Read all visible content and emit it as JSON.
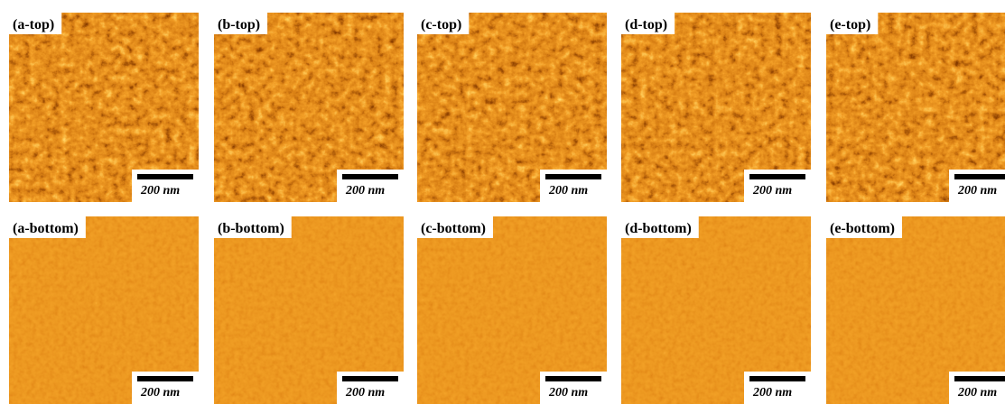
{
  "panels": [
    {
      "label": "(a-top)",
      "scale": "200 nm"
    },
    {
      "label": "(b-top)",
      "scale": "200 nm"
    },
    {
      "label": "(c-top)",
      "scale": "200 nm"
    },
    {
      "label": "(d-top)",
      "scale": "200 nm"
    },
    {
      "label": "(e-top)",
      "scale": "200 nm"
    },
    {
      "label": "(a-bottom)",
      "scale": "200 nm"
    },
    {
      "label": "(b-bottom)",
      "scale": "200 nm"
    },
    {
      "label": "(c-bottom)",
      "scale": "200 nm"
    },
    {
      "label": "(d-bottom)",
      "scale": "200 nm"
    },
    {
      "label": "(e-bottom)",
      "scale": "200 nm"
    }
  ]
}
